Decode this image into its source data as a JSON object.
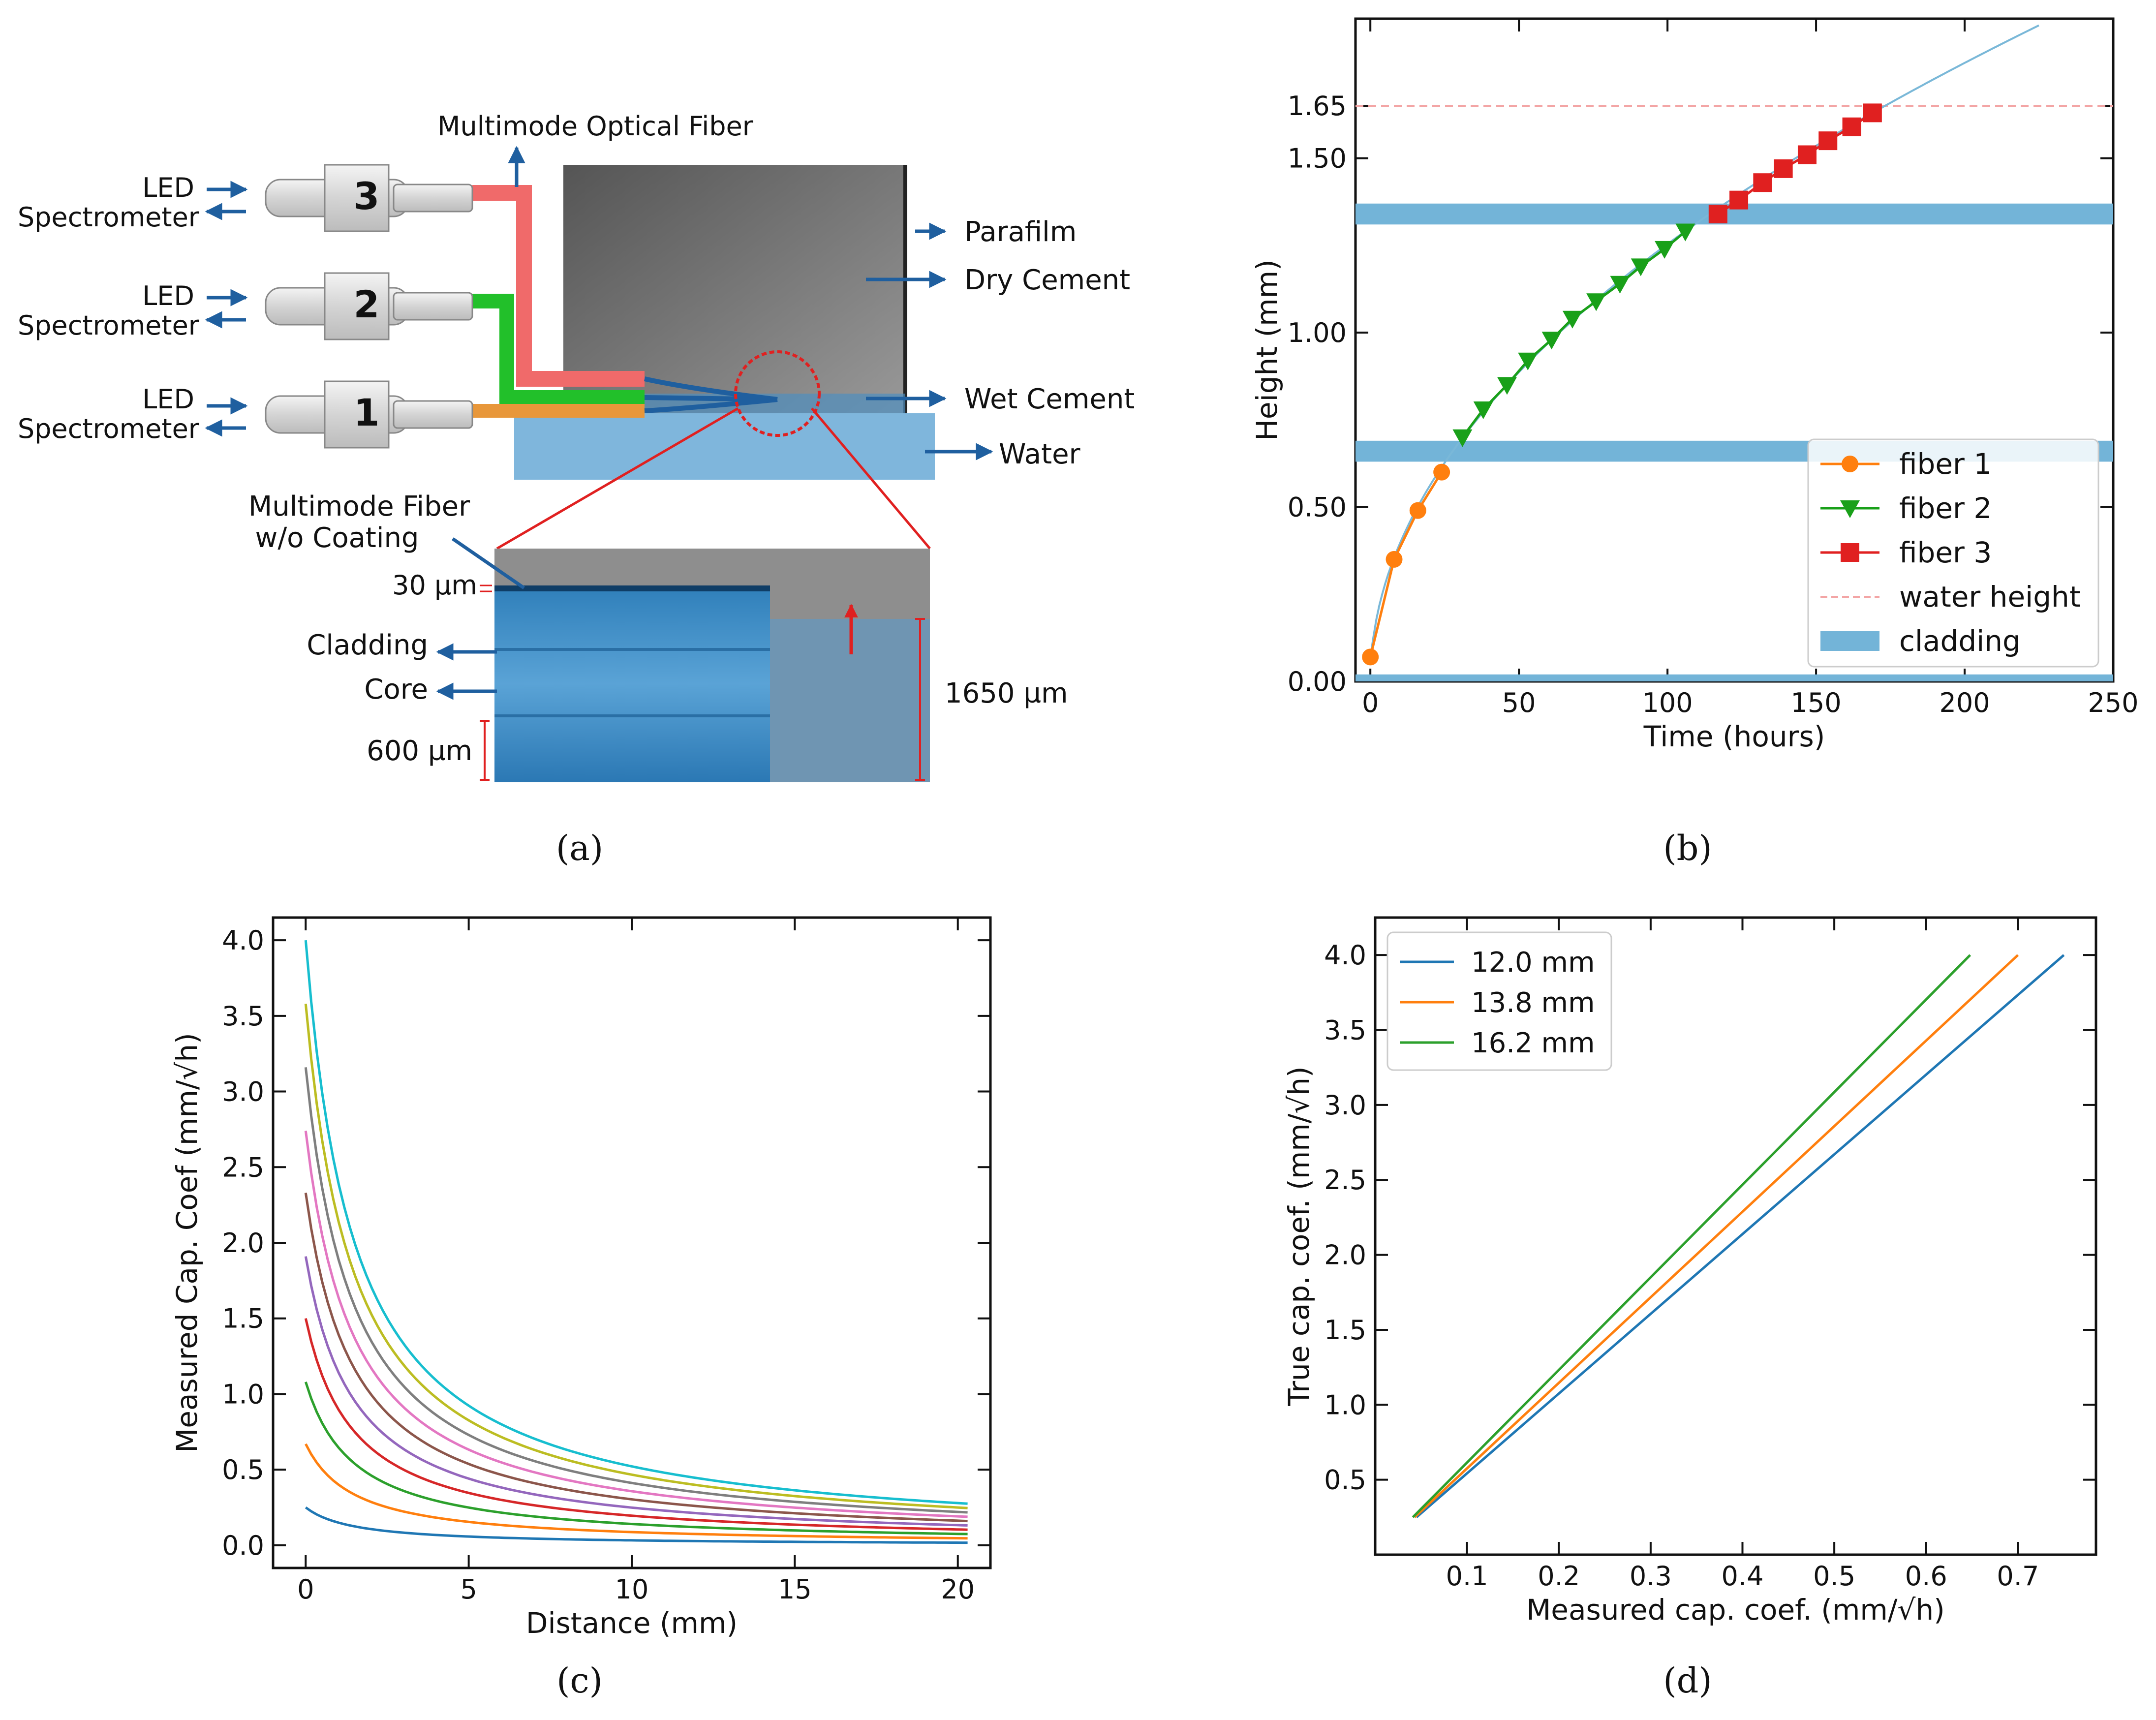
{
  "panel_a": {
    "caption": "(a)",
    "fiber_label": "Multimode Optical Fiber",
    "connectors": [
      {
        "number": "3",
        "led": "LED",
        "spectrometer": "Spectrometer",
        "fiber_color": "#f06a6a"
      },
      {
        "number": "2",
        "led": "LED",
        "spectrometer": "Spectrometer",
        "fiber_color": "#22c02a"
      },
      {
        "number": "1",
        "led": "LED",
        "spectrometer": "Spectrometer",
        "fiber_color": "#e8973a"
      }
    ],
    "labels": {
      "parafilm": "Parafilm",
      "dry_cement": "Dry Cement",
      "wet_cement": "Wet Cement",
      "water": "Water",
      "uncoated_line1": "Multimode Fiber",
      "uncoated_line2": "w/o Coating",
      "coating_gap": "30 µm",
      "cladding": "Cladding",
      "core": "Core",
      "core_size": "600 µm",
      "water_height": "1650 µm"
    }
  },
  "chart_data": [
    {
      "id": "b",
      "caption": "(b)",
      "type": "line",
      "xlabel": "Time (hours)",
      "ylabel": "Height (mm)",
      "xlim": [
        -5,
        250
      ],
      "ylim": [
        0,
        1.9
      ],
      "xticks": [
        0,
        50,
        100,
        150,
        200,
        250
      ],
      "yticks": [
        0.0,
        0.5,
        1.0,
        1.5,
        1.65
      ],
      "ytick_labels": [
        "0.00",
        "0.50",
        "1.00",
        "1.50",
        "1.65"
      ],
      "series": [
        {
          "name": "fiber 1",
          "color": "#ff7f0e",
          "marker": "circle",
          "x": [
            0,
            8,
            16,
            24
          ],
          "y": [
            0.07,
            0.35,
            0.49,
            0.6
          ]
        },
        {
          "name": "fiber 2",
          "color": "#19a019",
          "marker": "triangle-down",
          "x": [
            31,
            38,
            46,
            53,
            61,
            68,
            76,
            84,
            91,
            99,
            106
          ],
          "y": [
            0.7,
            0.78,
            0.85,
            0.92,
            0.98,
            1.04,
            1.09,
            1.14,
            1.19,
            1.24,
            1.29
          ]
        },
        {
          "name": "fiber 3",
          "color": "#e02020",
          "marker": "square",
          "x": [
            117,
            124,
            132,
            139,
            147,
            154,
            162,
            169
          ],
          "y": [
            1.34,
            1.38,
            1.43,
            1.47,
            1.51,
            1.55,
            1.59,
            1.63
          ]
        }
      ],
      "fit_curve": {
        "color": "#7ab8d8",
        "x_end": 225
      },
      "water_height": {
        "name": "water height",
        "value": 1.65,
        "color": "#f3a5a5"
      },
      "cladding": {
        "name": "cladding",
        "color": "#73b4d8",
        "bands": [
          [
            0.0,
            0.02
          ],
          [
            0.63,
            0.69
          ],
          [
            1.31,
            1.37
          ]
        ]
      },
      "legend": [
        "fiber 1",
        "fiber 2",
        "fiber 3",
        "water height",
        "cladding"
      ],
      "legend_position": "lower-right"
    },
    {
      "id": "c",
      "caption": "(c)",
      "type": "line",
      "xlabel": "Distance (mm)",
      "ylabel": "Measured Cap. Coef (mm/√h)",
      "xlim": [
        -1,
        21
      ],
      "ylim": [
        -0.15,
        4.15
      ],
      "xticks": [
        0,
        5,
        10,
        15,
        20
      ],
      "yticks": [
        0.0,
        0.5,
        1.0,
        1.5,
        2.0,
        2.5,
        3.0,
        3.5,
        4.0
      ],
      "ytick_labels": [
        "0.0",
        "0.5",
        "1.0",
        "1.5",
        "2.0",
        "2.5",
        "3.0",
        "3.5",
        "4.0"
      ],
      "x_range": [
        0,
        20.3
      ],
      "decay_constant": 1.5,
      "series": [
        {
          "value_at_zero": 4.0,
          "color": "#17becf"
        },
        {
          "value_at_zero": 3.58,
          "color": "#bcbd22"
        },
        {
          "value_at_zero": 3.16,
          "color": "#7f7f7f"
        },
        {
          "value_at_zero": 2.74,
          "color": "#e377c2"
        },
        {
          "value_at_zero": 2.33,
          "color": "#8c564b"
        },
        {
          "value_at_zero": 1.91,
          "color": "#9467bd"
        },
        {
          "value_at_zero": 1.5,
          "color": "#d62728"
        },
        {
          "value_at_zero": 1.08,
          "color": "#2ca02c"
        },
        {
          "value_at_zero": 0.67,
          "color": "#ff7f0e"
        },
        {
          "value_at_zero": 0.25,
          "color": "#1f77b4"
        }
      ]
    },
    {
      "id": "d",
      "caption": "(d)",
      "type": "line",
      "xlabel": "Measured cap. coef. (mm/√h)",
      "ylabel": "True cap. coef. (mm/√h)",
      "xlim": [
        0.0,
        0.785
      ],
      "ylim": [
        0.0,
        4.25
      ],
      "xticks": [
        0.1,
        0.2,
        0.3,
        0.4,
        0.5,
        0.6,
        0.7
      ],
      "yticks": [
        0.5,
        1.0,
        1.5,
        2.0,
        2.5,
        3.0,
        3.5,
        4.0
      ],
      "ytick_labels": [
        "0.5",
        "1.0",
        "1.5",
        "2.0",
        "2.5",
        "3.0",
        "3.5",
        "4.0"
      ],
      "series": [
        {
          "name": "12.0 mm",
          "color": "#1f77b4",
          "x": [
            0.045,
            0.75
          ],
          "y": [
            0.25,
            4.0
          ]
        },
        {
          "name": "13.8 mm",
          "color": "#ff7f0e",
          "x": [
            0.043,
            0.7
          ],
          "y": [
            0.25,
            4.0
          ]
        },
        {
          "name": "16.2 mm",
          "color": "#2ca02c",
          "x": [
            0.041,
            0.648
          ],
          "y": [
            0.25,
            4.0
          ]
        }
      ],
      "legend_position": "top-left"
    }
  ]
}
